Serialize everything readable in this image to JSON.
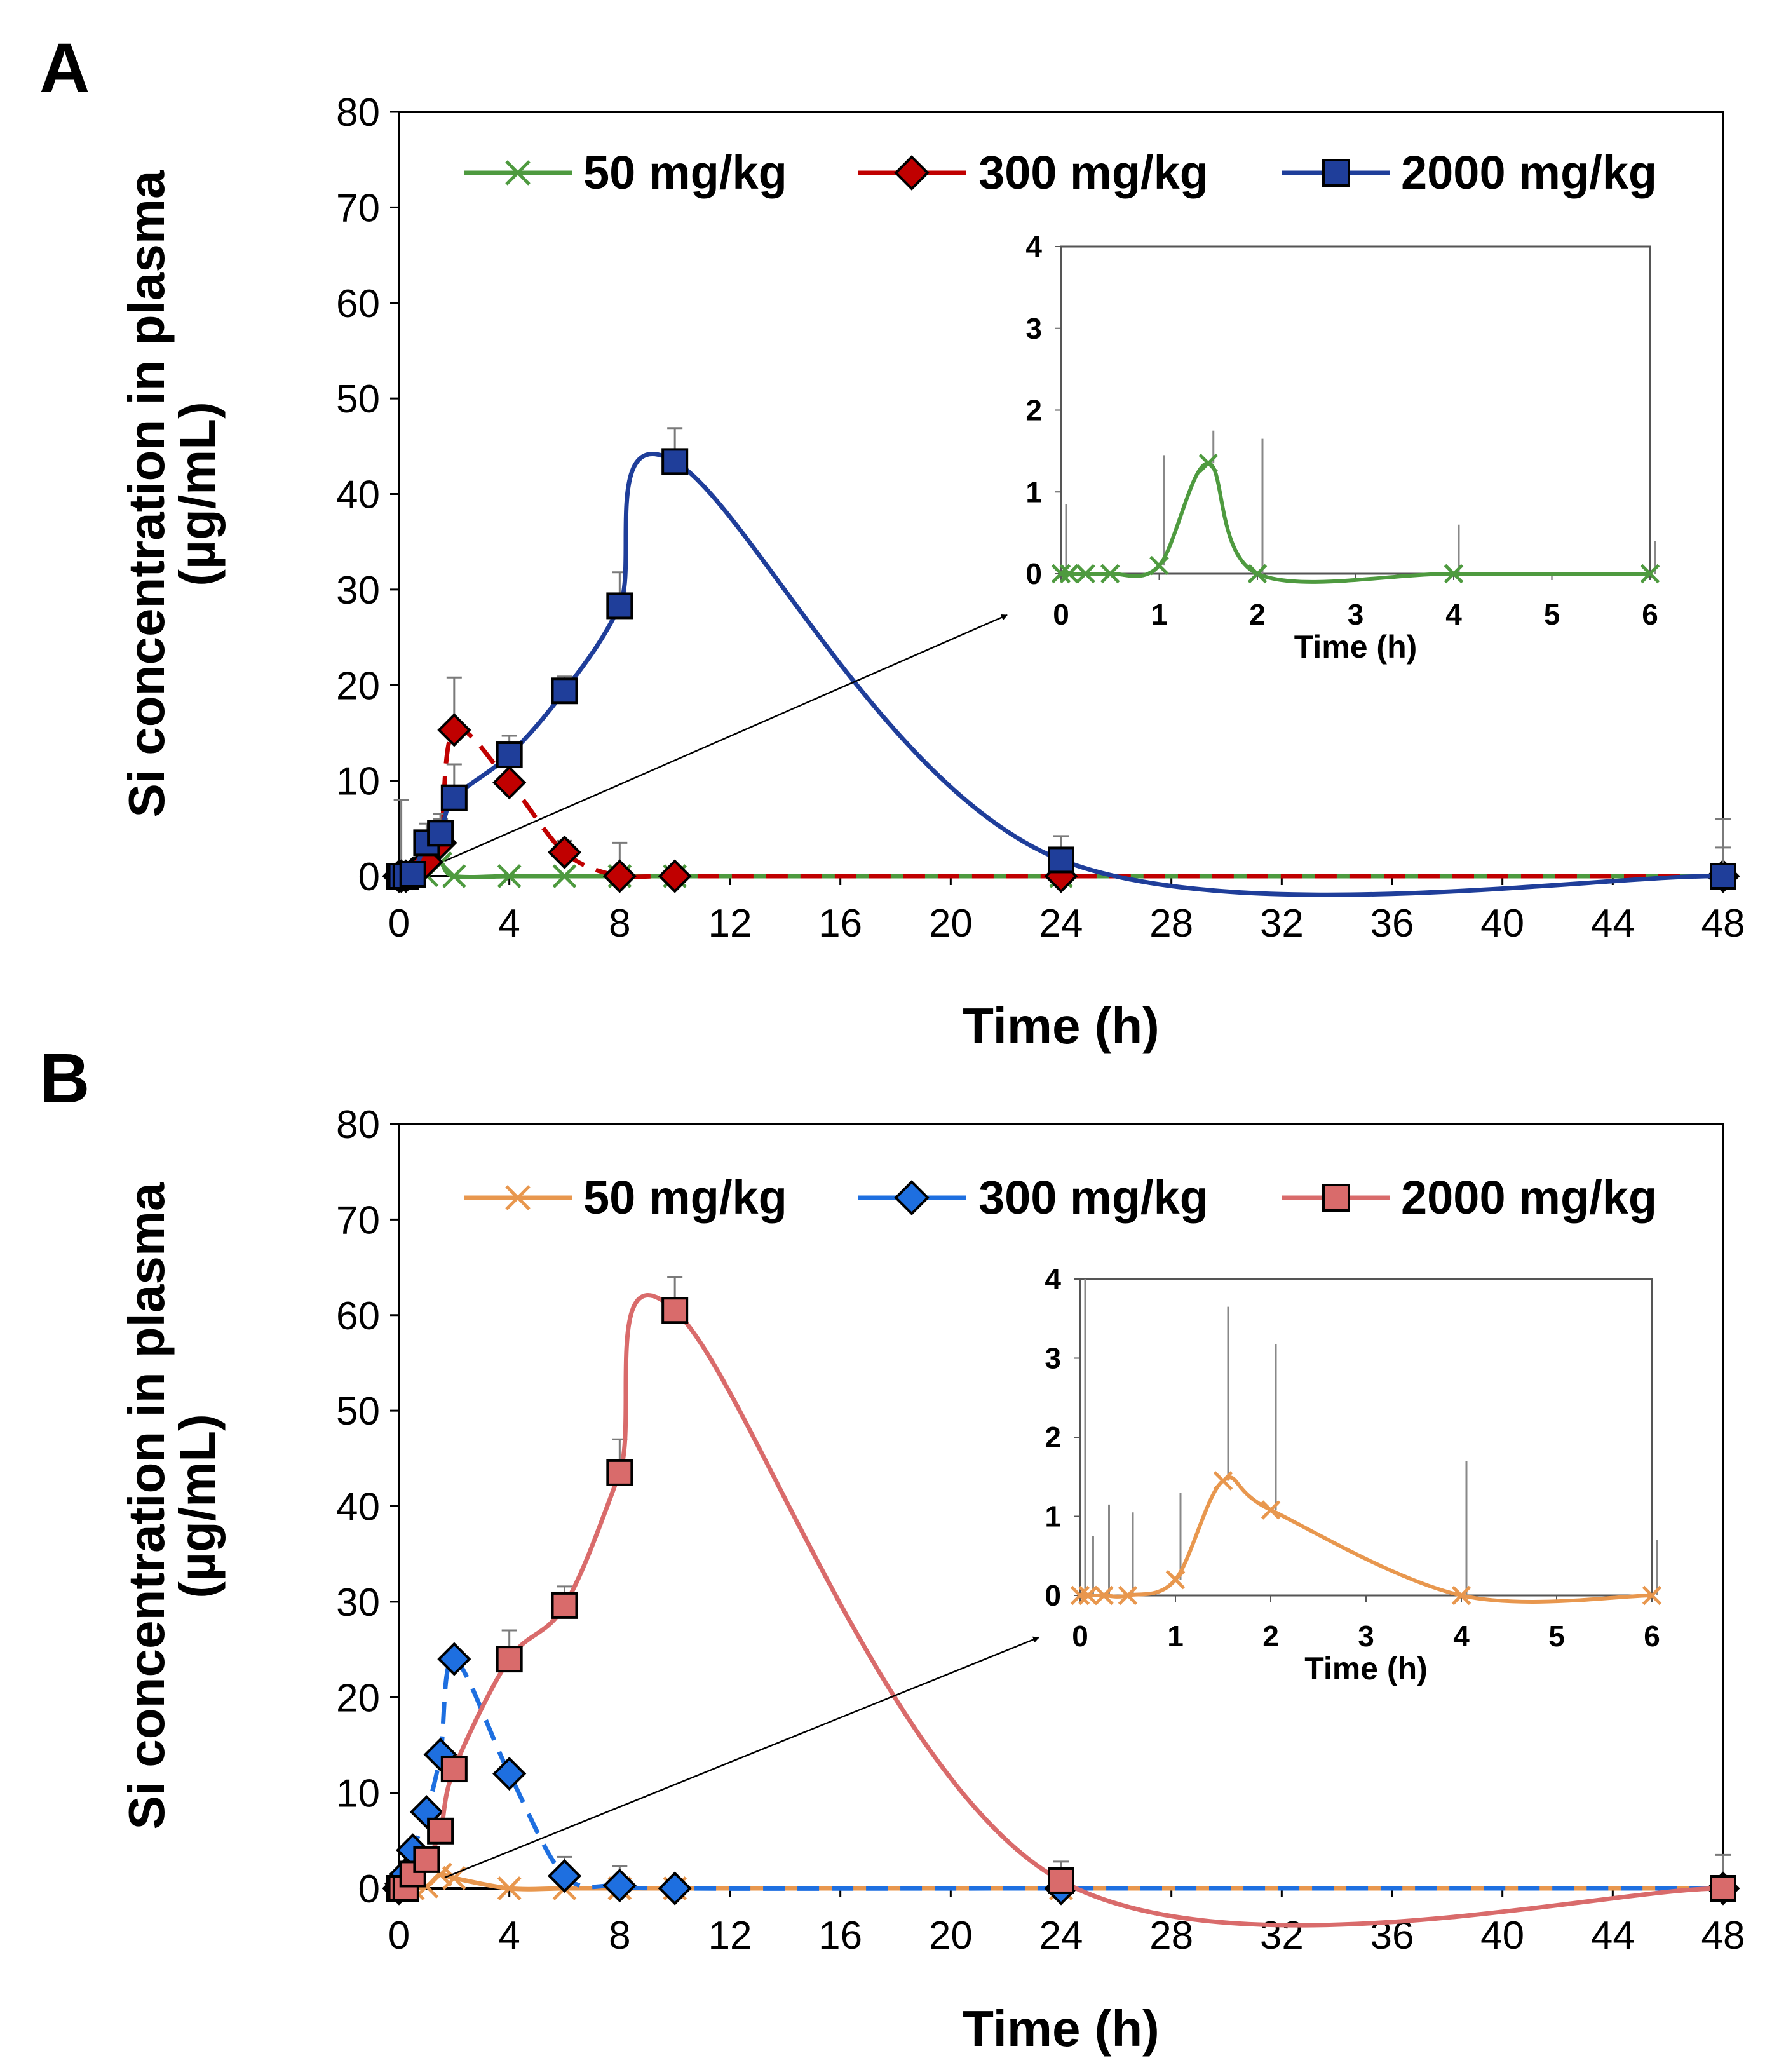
{
  "panels": [
    {
      "label": "A",
      "main": {
        "ylabel_line1": "Si concentration in plasma",
        "ylabel_line2": "(µg/mL)",
        "xlabel": "Time (h)",
        "xticks": [
          0,
          4,
          8,
          12,
          16,
          20,
          24,
          28,
          32,
          36,
          40,
          44,
          48
        ],
        "yticks": [
          0,
          10,
          20,
          30,
          40,
          50,
          60,
          70,
          80
        ],
        "xlim": [
          0,
          48
        ],
        "ylim": [
          0,
          80
        ]
      },
      "inset": {
        "xlabel": "Time (h)",
        "xticks": [
          0,
          1,
          2,
          3,
          4,
          5,
          6
        ],
        "yticks": [
          0,
          1,
          2,
          3,
          4
        ],
        "xlim": [
          0,
          6
        ],
        "ylim": [
          0,
          4
        ],
        "series": {
          "name": "50 mg/kg",
          "x": [
            0,
            0.083,
            0.25,
            0.5,
            1,
            1.5,
            2,
            4,
            6
          ],
          "y": [
            0,
            0,
            0,
            0,
            0.1,
            1.35,
            0,
            0,
            0
          ],
          "err": [
            0.85,
            0,
            0,
            0,
            1.35,
            0.4,
            1.65,
            0.6,
            0.4
          ]
        }
      },
      "series": [
        {
          "name": "50 mg/kg",
          "marker": "x",
          "color": "#4e9a3f",
          "dash": "solid",
          "x": [
            0,
            0.083,
            0.25,
            0.5,
            1,
            1.5,
            2,
            4,
            6,
            8,
            10,
            24,
            48
          ],
          "y": [
            0,
            0,
            0,
            0,
            0.1,
            1.35,
            0,
            0,
            0,
            0,
            0,
            0,
            0
          ],
          "err": [
            0,
            0,
            0,
            0,
            0,
            0,
            0,
            0,
            0,
            0,
            0,
            0,
            0
          ]
        },
        {
          "name": "300 mg/kg",
          "marker": "diamond",
          "color": "#c00000",
          "dash": "dashed",
          "x": [
            0,
            0.083,
            0.25,
            0.5,
            1,
            1.5,
            2,
            4,
            6,
            8,
            10,
            24,
            48
          ],
          "y": [
            0,
            0,
            0,
            0.3,
            1.5,
            3.5,
            15.3,
            9.8,
            2.5,
            0,
            0,
            0,
            0
          ],
          "err": [
            0,
            8,
            0,
            0,
            4,
            2.5,
            5.5,
            2,
            1.2,
            3.5,
            0,
            0,
            6
          ]
        },
        {
          "name": "2000 mg/kg",
          "marker": "square",
          "color": "#1f3e9a",
          "dash": "solid",
          "x": [
            0,
            0.083,
            0.25,
            0.5,
            1,
            1.5,
            2,
            4,
            6,
            8,
            10,
            24,
            48
          ],
          "y": [
            0,
            0,
            0,
            0.2,
            3.5,
            4.5,
            8.2,
            12.7,
            19.4,
            28.3,
            43.4,
            1.7,
            0
          ],
          "err": [
            0,
            0,
            0,
            0,
            1,
            2,
            3.5,
            2,
            1.5,
            3.5,
            3.5,
            2.5,
            3
          ]
        }
      ]
    },
    {
      "label": "B",
      "main": {
        "ylabel_line1": "Si concentration in plasma",
        "ylabel_line2": "(µg/mL)",
        "xlabel": "Time (h)",
        "xticks": [
          0,
          4,
          8,
          12,
          16,
          20,
          24,
          28,
          32,
          36,
          40,
          44,
          48
        ],
        "yticks": [
          0,
          10,
          20,
          30,
          40,
          50,
          60,
          70,
          80
        ],
        "xlim": [
          0,
          48
        ],
        "ylim": [
          0,
          80
        ]
      },
      "inset": {
        "xlabel": "Time (h)",
        "xticks": [
          0,
          1,
          2,
          3,
          4,
          5,
          6
        ],
        "yticks": [
          0,
          1,
          2,
          3,
          4
        ],
        "xlim": [
          0,
          6
        ],
        "ylim": [
          0,
          4
        ],
        "series": {
          "name": "50 mg/kg",
          "x": [
            0,
            0.083,
            0.25,
            0.5,
            1,
            1.5,
            2,
            4,
            6
          ],
          "y": [
            0,
            0,
            0,
            0,
            0.2,
            1.45,
            1.08,
            0,
            0
          ],
          "err": [
            4,
            0.75,
            1.15,
            1.05,
            1.1,
            2.2,
            2.1,
            1.7,
            0.7
          ]
        }
      },
      "series": [
        {
          "name": "50 mg/kg",
          "marker": "x",
          "color": "#e8974e",
          "dash": "solid",
          "x": [
            0,
            0.083,
            0.25,
            0.5,
            1,
            1.5,
            2,
            4,
            6,
            8,
            10,
            24,
            48
          ],
          "y": [
            0,
            0,
            0,
            0,
            0.2,
            1.45,
            1.08,
            0,
            0,
            0,
            0,
            0,
            0
          ],
          "err": [
            0,
            0,
            0,
            0,
            0,
            0,
            0,
            0,
            0,
            0,
            0,
            0,
            0
          ]
        },
        {
          "name": "300 mg/kg",
          "marker": "diamond",
          "color": "#1e6fe0",
          "dash": "dashed",
          "x": [
            0,
            0.083,
            0.25,
            0.5,
            1,
            1.5,
            2,
            4,
            6,
            8,
            10,
            24,
            48
          ],
          "y": [
            0,
            0.5,
            1.5,
            4,
            8,
            14,
            24,
            12,
            1.3,
            0.3,
            0,
            0,
            0
          ],
          "err": [
            0,
            0,
            0,
            0,
            0,
            0,
            0,
            0,
            2,
            2,
            0,
            0,
            3.5
          ]
        },
        {
          "name": "2000 mg/kg",
          "marker": "square",
          "color": "#d96b6b",
          "dash": "solid",
          "x": [
            0,
            0.083,
            0.25,
            0.5,
            1,
            1.5,
            2,
            4,
            6,
            8,
            10,
            24,
            48
          ],
          "y": [
            0,
            0,
            0,
            1.5,
            3,
            6,
            12.5,
            24,
            29.6,
            43.5,
            60.5,
            0.8,
            0
          ],
          "err": [
            0,
            0,
            0,
            0,
            0,
            0,
            0,
            3,
            2,
            3.5,
            3.5,
            2,
            0
          ]
        }
      ]
    }
  ],
  "chart_data": [
    {
      "type": "line",
      "title": "A",
      "xlabel": "Time (h)",
      "ylabel": "Si concentration in plasma (µg/mL)",
      "xlim": [
        0,
        48
      ],
      "ylim": [
        0,
        80
      ],
      "x": [
        0,
        0.083,
        0.25,
        0.5,
        1,
        1.5,
        2,
        4,
        6,
        8,
        10,
        24,
        48
      ],
      "series": [
        {
          "name": "50 mg/kg",
          "values": [
            0,
            0,
            0,
            0,
            0.1,
            1.35,
            0,
            0,
            0,
            0,
            0,
            0,
            0
          ]
        },
        {
          "name": "300 mg/kg",
          "values": [
            0,
            0,
            0,
            0.3,
            1.5,
            3.5,
            15.3,
            9.8,
            2.5,
            0,
            0,
            0,
            0
          ]
        },
        {
          "name": "2000 mg/kg",
          "values": [
            0,
            0,
            0,
            0.2,
            3.5,
            4.5,
            8.2,
            12.7,
            19.4,
            28.3,
            43.4,
            1.7,
            0
          ]
        }
      ],
      "inset": {
        "series": "50 mg/kg",
        "xlim": [
          0,
          6
        ],
        "ylim": [
          0,
          4
        ],
        "xlabel": "Time (h)"
      }
    },
    {
      "type": "line",
      "title": "B",
      "xlabel": "Time (h)",
      "ylabel": "Si concentration in plasma (µg/mL)",
      "xlim": [
        0,
        48
      ],
      "ylim": [
        0,
        80
      ],
      "x": [
        0,
        0.083,
        0.25,
        0.5,
        1,
        1.5,
        2,
        4,
        6,
        8,
        10,
        24,
        48
      ],
      "series": [
        {
          "name": "50 mg/kg",
          "values": [
            0,
            0,
            0,
            0,
            0.2,
            1.45,
            1.08,
            0,
            0,
            0,
            0,
            0,
            0
          ]
        },
        {
          "name": "300 mg/kg",
          "values": [
            0,
            0.5,
            1.5,
            4,
            8,
            14,
            24,
            12,
            1.3,
            0.3,
            0,
            0,
            0
          ]
        },
        {
          "name": "2000 mg/kg",
          "values": [
            0,
            0,
            0,
            1.5,
            3,
            6,
            12.5,
            24,
            29.6,
            43.5,
            60.5,
            0.8,
            0
          ]
        }
      ],
      "inset": {
        "series": "50 mg/kg",
        "xlim": [
          0,
          6
        ],
        "ylim": [
          0,
          4
        ],
        "xlabel": "Time (h)"
      }
    }
  ]
}
